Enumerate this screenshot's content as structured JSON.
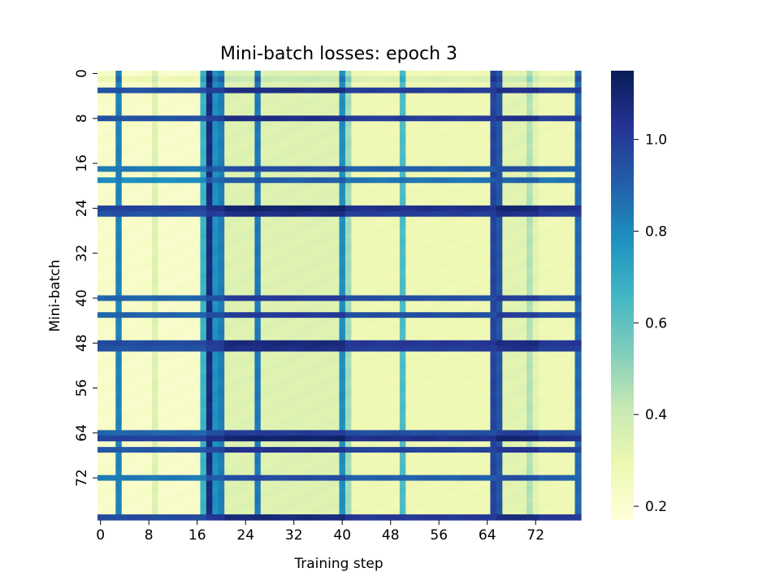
{
  "chart_data": {
    "type": "heatmap",
    "title": "Mini-batch losses: epoch 3",
    "xlabel": "Training step",
    "ylabel": "Mini-batch",
    "n_rows": 80,
    "n_cols": 80,
    "x_ticks": [
      0,
      8,
      16,
      24,
      32,
      40,
      48,
      56,
      64,
      72
    ],
    "y_ticks": [
      0,
      8,
      16,
      24,
      32,
      40,
      48,
      56,
      64,
      72
    ],
    "colorbar": {
      "range": [
        0.17,
        1.15
      ],
      "ticks": [
        0.2,
        0.4,
        0.6,
        0.8,
        1.0
      ],
      "tick_labels": [
        "0.2",
        "0.4",
        "0.6",
        "0.8",
        "1.0"
      ],
      "colormap": "YlGnBu",
      "colors": [
        "#ffffd9",
        "#edf8b1",
        "#c7e9b4",
        "#7fcdbb",
        "#41b6c4",
        "#1d91c0",
        "#225ea8",
        "#253494",
        "#081d58"
      ]
    },
    "approximate_structure": {
      "row_base_loss": {
        "1": 0.35,
        "3": 1.0,
        "8": 1.0,
        "17": 0.9,
        "19": 0.85,
        "24": 1.05,
        "25": 1.0,
        "40": 0.95,
        "43": 0.95,
        "48": 1.02,
        "49": 1.0,
        "64": 0.95,
        "65": 1.05,
        "67": 0.98,
        "72": 0.9,
        "79": 1.02
      },
      "default_row_base_loss": 0.28,
      "col_loss_boost": {
        "3": 0.6,
        "9": 0.12,
        "17": 0.45,
        "18": 0.8,
        "19": 0.5,
        "20": 0.55,
        "26": 0.5,
        "40": 0.45,
        "41": 0.2,
        "50": 0.35,
        "65": 0.7,
        "66": 0.6,
        "71": 0.12,
        "79": 0.6
      },
      "steps_0_to_17_extra": -0.06,
      "steps_21_to_40_extra": 0.06,
      "steps_66_to_72_extra": 0.05
    }
  }
}
